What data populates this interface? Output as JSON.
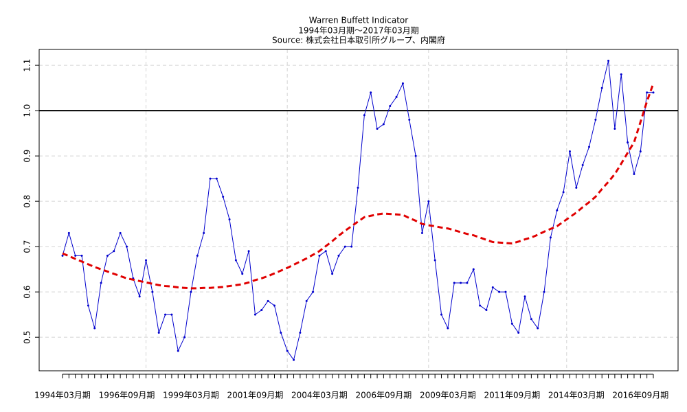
{
  "chart_data": {
    "type": "line",
    "title": "Warren Buffett Indicator",
    "subtitle": "1994年03月期～2017年03月期",
    "source": "Source: 株式会社日本取引所グループ、内閣府",
    "categories": [
      "1994年03月期",
      null,
      null,
      null,
      null,
      null,
      null,
      null,
      null,
      null,
      "1996年09月期",
      null,
      null,
      null,
      null,
      null,
      null,
      null,
      null,
      null,
      "1999年03月期",
      null,
      null,
      null,
      null,
      null,
      null,
      null,
      null,
      null,
      "2001年09月期",
      null,
      null,
      null,
      null,
      null,
      null,
      null,
      null,
      null,
      "2004年03月期",
      null,
      null,
      null,
      null,
      null,
      null,
      null,
      null,
      null,
      "2006年09月期",
      null,
      null,
      null,
      null,
      null,
      null,
      null,
      null,
      null,
      "2009年03月期",
      null,
      null,
      null,
      null,
      null,
      null,
      null,
      null,
      null,
      "2011年09月期",
      null,
      null,
      null,
      null,
      null,
      null,
      null,
      null,
      null,
      "2014年03月期",
      null,
      null,
      null,
      null,
      null,
      null,
      null,
      null,
      null,
      "2016年09月期",
      null,
      null
    ],
    "series": [
      {
        "color": "#0000cd",
        "style": "solid",
        "points": true,
        "values": [
          0.68,
          0.73,
          0.68,
          0.68,
          0.57,
          0.52,
          0.62,
          0.68,
          0.69,
          0.73,
          0.7,
          0.63,
          0.59,
          0.67,
          0.6,
          0.51,
          0.55,
          0.55,
          0.47,
          0.5,
          0.6,
          0.68,
          0.73,
          0.85,
          0.85,
          0.81,
          0.76,
          0.67,
          0.64,
          0.69,
          0.55,
          0.56,
          0.58,
          0.57,
          0.51,
          0.47,
          0.45,
          0.51,
          0.58,
          0.6,
          0.68,
          0.69,
          0.64,
          0.68,
          0.7,
          0.7,
          0.83,
          0.99,
          1.04,
          0.96,
          0.97,
          1.01,
          1.03,
          1.06,
          0.98,
          0.9,
          0.73,
          0.8,
          0.67,
          0.55,
          0.52,
          0.62,
          0.62,
          0.62,
          0.65,
          0.57,
          0.56,
          0.61,
          0.6,
          0.6,
          0.53,
          0.51,
          0.59,
          0.54,
          0.52,
          0.6,
          0.72,
          0.78,
          0.82,
          0.91,
          0.83,
          0.88,
          0.92,
          0.98,
          1.05,
          1.11,
          0.96,
          1.08,
          0.93,
          0.86,
          0.91,
          1.04,
          1.04
        ]
      },
      {
        "color": "#e00000",
        "style": "dashed",
        "points": false,
        "values": [
          0.685,
          0.679,
          0.673,
          0.667,
          0.661,
          0.655,
          0.65,
          0.645,
          0.64,
          0.635,
          0.63,
          0.627,
          0.624,
          0.621,
          0.618,
          0.615,
          0.613,
          0.612,
          0.61,
          0.609,
          0.608,
          0.608,
          0.609,
          0.609,
          0.61,
          0.611,
          0.613,
          0.615,
          0.617,
          0.621,
          0.626,
          0.63,
          0.635,
          0.641,
          0.647,
          0.653,
          0.66,
          0.667,
          0.674,
          0.682,
          0.69,
          0.701,
          0.712,
          0.724,
          0.735,
          0.745,
          0.755,
          0.765,
          0.768,
          0.771,
          0.773,
          0.772,
          0.771,
          0.77,
          0.763,
          0.757,
          0.75,
          0.747,
          0.745,
          0.742,
          0.74,
          0.736,
          0.732,
          0.728,
          0.725,
          0.72,
          0.715,
          0.71,
          0.709,
          0.708,
          0.707,
          0.711,
          0.716,
          0.72,
          0.726,
          0.733,
          0.739,
          0.745,
          0.755,
          0.765,
          0.775,
          0.787,
          0.798,
          0.81,
          0.827,
          0.843,
          0.86,
          0.883,
          0.907,
          0.93,
          0.975,
          1.02,
          1.06
        ]
      }
    ],
    "hline": 1,
    "ylim": [
      0.426,
      1.135
    ],
    "yticks": [
      0.5,
      0.6,
      0.7,
      0.8,
      0.9,
      {
        "value": 1,
        "label": "1.0"
      },
      1.1
    ],
    "xgrid": [
      13,
      35,
      57,
      78.5
    ],
    "grid": true
  }
}
